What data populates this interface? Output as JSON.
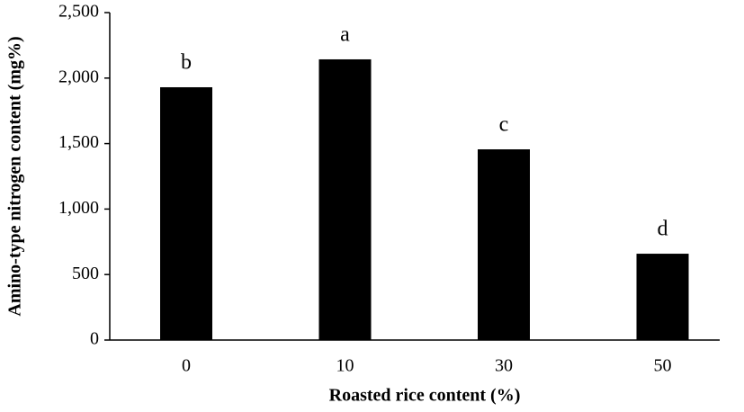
{
  "chart_data": {
    "type": "bar",
    "x_label": "Roasted rice content (%)",
    "y_label": "Amino-type nitrogen content (mg%)",
    "categories": [
      "0",
      "10",
      "30",
      "50"
    ],
    "values": [
      1930,
      2143,
      1456,
      659
    ],
    "annotations": [
      "b",
      "a",
      "c",
      "d"
    ],
    "color": "#000000",
    "ylim": [
      0,
      2500
    ],
    "yticks": [
      0,
      500,
      {
        "value": 1000,
        "label": "1,000"
      },
      {
        "value": 1500,
        "label": "1,500"
      },
      {
        "value": 2000,
        "label": "2,000"
      },
      {
        "value": 2500,
        "label": "2,500"
      }
    ],
    "grid": false
  }
}
